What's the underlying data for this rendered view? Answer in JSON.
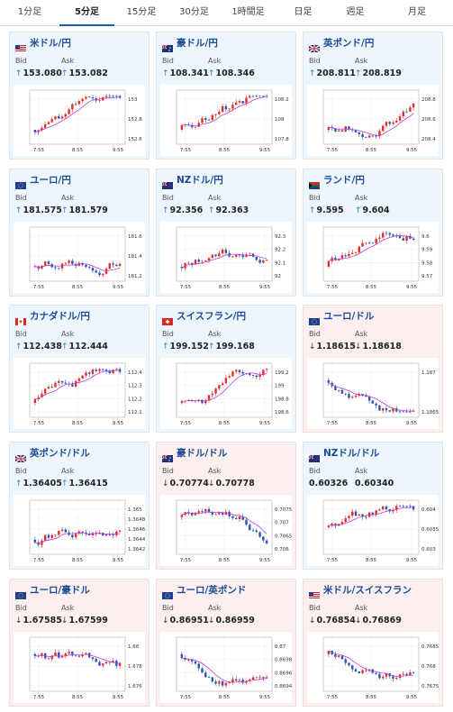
{
  "tabs": [
    {
      "label": "1分足",
      "active": false
    },
    {
      "label": "5分足",
      "active": true
    },
    {
      "label": "15分足",
      "active": false
    },
    {
      "label": "30分足",
      "active": false
    },
    {
      "label": "1時間足",
      "active": false
    },
    {
      "label": "日足",
      "active": false
    },
    {
      "label": "週足",
      "active": false
    },
    {
      "label": "月足",
      "active": false
    }
  ],
  "labels": {
    "bid": "Bid",
    "ask": "Ask"
  },
  "colors": {
    "up_card": "#eef6fd",
    "down_card": "#fcefef",
    "candle_up": "#e0302a",
    "candle_down": "#2a55b0",
    "ma": "#c23cd6",
    "title": "#1a4a99"
  },
  "pairs": [
    {
      "name": "米ドル/円",
      "flag": "us",
      "trend": "up",
      "bid": "153.080",
      "ask": "153.082",
      "chart_data": {
        "type": "candlestick",
        "x_ticks": [
          "7:55",
          "8:55",
          "9:55"
        ],
        "y_ticks": [
          "153",
          "152.8",
          "152.6"
        ]
      }
    },
    {
      "name": "豪ドル/円",
      "flag": "au",
      "trend": "up",
      "bid": "108.341",
      "ask": "108.346",
      "chart_data": {
        "type": "candlestick",
        "x_ticks": [
          "7:55",
          "8:55",
          "9:55"
        ],
        "y_ticks": [
          "108.2",
          "108",
          "107.8"
        ]
      }
    },
    {
      "name": "英ポンド/円",
      "flag": "gb",
      "trend": "up",
      "bid": "208.811",
      "ask": "208.819",
      "chart_data": {
        "type": "candlestick",
        "x_ticks": [
          "7:55",
          "8:55",
          "9:55"
        ],
        "y_ticks": [
          "208.8",
          "208.6",
          "208.4"
        ]
      }
    },
    {
      "name": "ユーロ/円",
      "flag": "eu",
      "trend": "up",
      "bid": "181.575",
      "ask": "181.579",
      "chart_data": {
        "type": "candlestick",
        "x_ticks": [
          "7:55",
          "8:55",
          "9:55"
        ],
        "y_ticks": [
          "181.6",
          "181.4",
          "181.2"
        ]
      }
    },
    {
      "name": "NZドル/円",
      "flag": "nz",
      "trend": "up",
      "bid": "92.356",
      "ask": "92.363",
      "chart_data": {
        "type": "candlestick",
        "x_ticks": [
          "7:55",
          "8:55",
          "9:55"
        ],
        "y_ticks": [
          "92.3",
          "92.2",
          "92.1",
          "92"
        ]
      }
    },
    {
      "name": "ランド/円",
      "flag": "za",
      "trend": "up",
      "bid": "9.595",
      "ask": "9.604",
      "chart_data": {
        "type": "candlestick",
        "x_ticks": [
          "7:55",
          "8:55",
          "9:55"
        ],
        "y_ticks": [
          "9.6",
          "9.59",
          "9.58",
          "9.57"
        ]
      }
    },
    {
      "name": "カナダドル/円",
      "flag": "ca",
      "trend": "up",
      "bid": "112.438",
      "ask": "112.444",
      "chart_data": {
        "type": "candlestick",
        "x_ticks": [
          "7:55",
          "8:55",
          "9:55"
        ],
        "y_ticks": [
          "112.4",
          "112.3",
          "112.2",
          "112.1"
        ]
      }
    },
    {
      "name": "スイスフラン/円",
      "flag": "ch",
      "trend": "up",
      "bid": "199.152",
      "ask": "199.168",
      "chart_data": {
        "type": "candlestick",
        "x_ticks": [
          "7:55",
          "8:55",
          "9:55"
        ],
        "y_ticks": [
          "199.2",
          "199",
          "198.8",
          "198.6"
        ]
      }
    },
    {
      "name": "ユーロ/ドル",
      "flag": "eu",
      "trend": "down",
      "bid": "1.18615",
      "ask": "1.18618",
      "chart_data": {
        "type": "candlestick",
        "x_ticks": [
          "7:55",
          "8:55",
          "9:55"
        ],
        "y_ticks": [
          "1.187",
          "1.1865"
        ]
      }
    },
    {
      "name": "英ポンド/ドル",
      "flag": "gb",
      "trend": "up",
      "bid": "1.36405",
      "ask": "1.36415",
      "chart_data": {
        "type": "candlestick",
        "x_ticks": [
          "7:55",
          "8:55",
          "9:55"
        ],
        "y_ticks": [
          "1.365",
          "1.3648",
          "1.3646",
          "1.3644",
          "1.3642"
        ]
      }
    },
    {
      "name": "豪ドル/ドル",
      "flag": "au",
      "trend": "down",
      "bid": "0.70774",
      "ask": "0.70778",
      "chart_data": {
        "type": "candlestick",
        "x_ticks": [
          "7:55",
          "8:55",
          "9:55"
        ],
        "y_ticks": [
          "0.7075",
          "0.707",
          "0.7065",
          "0.706"
        ]
      }
    },
    {
      "name": "NZドル/ドル",
      "flag": "nz",
      "trend": "none",
      "bid": "0.60326",
      "ask": "0.60340",
      "chart_data": {
        "type": "candlestick",
        "x_ticks": [
          "7:55",
          "8:55",
          "9:55"
        ],
        "y_ticks": [
          "0.604",
          "0.6035",
          "0.603"
        ]
      }
    },
    {
      "name": "ユーロ/豪ドル",
      "flag": "eu",
      "trend": "down",
      "bid": "1.67585",
      "ask": "1.67599",
      "chart_data": {
        "type": "candlestick",
        "x_ticks": [
          "7:55",
          "8:55",
          "9:55"
        ],
        "y_ticks": [
          "1.68",
          "1.678",
          "1.676"
        ]
      }
    },
    {
      "name": "ユーロ/英ポンド",
      "flag": "eu",
      "trend": "down",
      "bid": "0.86951",
      "ask": "0.86959",
      "chart_data": {
        "type": "candlestick",
        "x_ticks": [
          "7:55",
          "8:55",
          "9:55"
        ],
        "y_ticks": [
          "0.87",
          "0.8698",
          "0.8696",
          "0.8694"
        ]
      }
    },
    {
      "name": "米ドル/スイスフラン",
      "flag": "us",
      "trend": "down",
      "bid": "0.76854",
      "ask": "0.76869",
      "chart_data": {
        "type": "candlestick",
        "x_ticks": [
          "7:55",
          "8:55",
          "9:55"
        ],
        "y_ticks": [
          "0.7685",
          "0.768",
          "0.7675"
        ]
      }
    }
  ]
}
